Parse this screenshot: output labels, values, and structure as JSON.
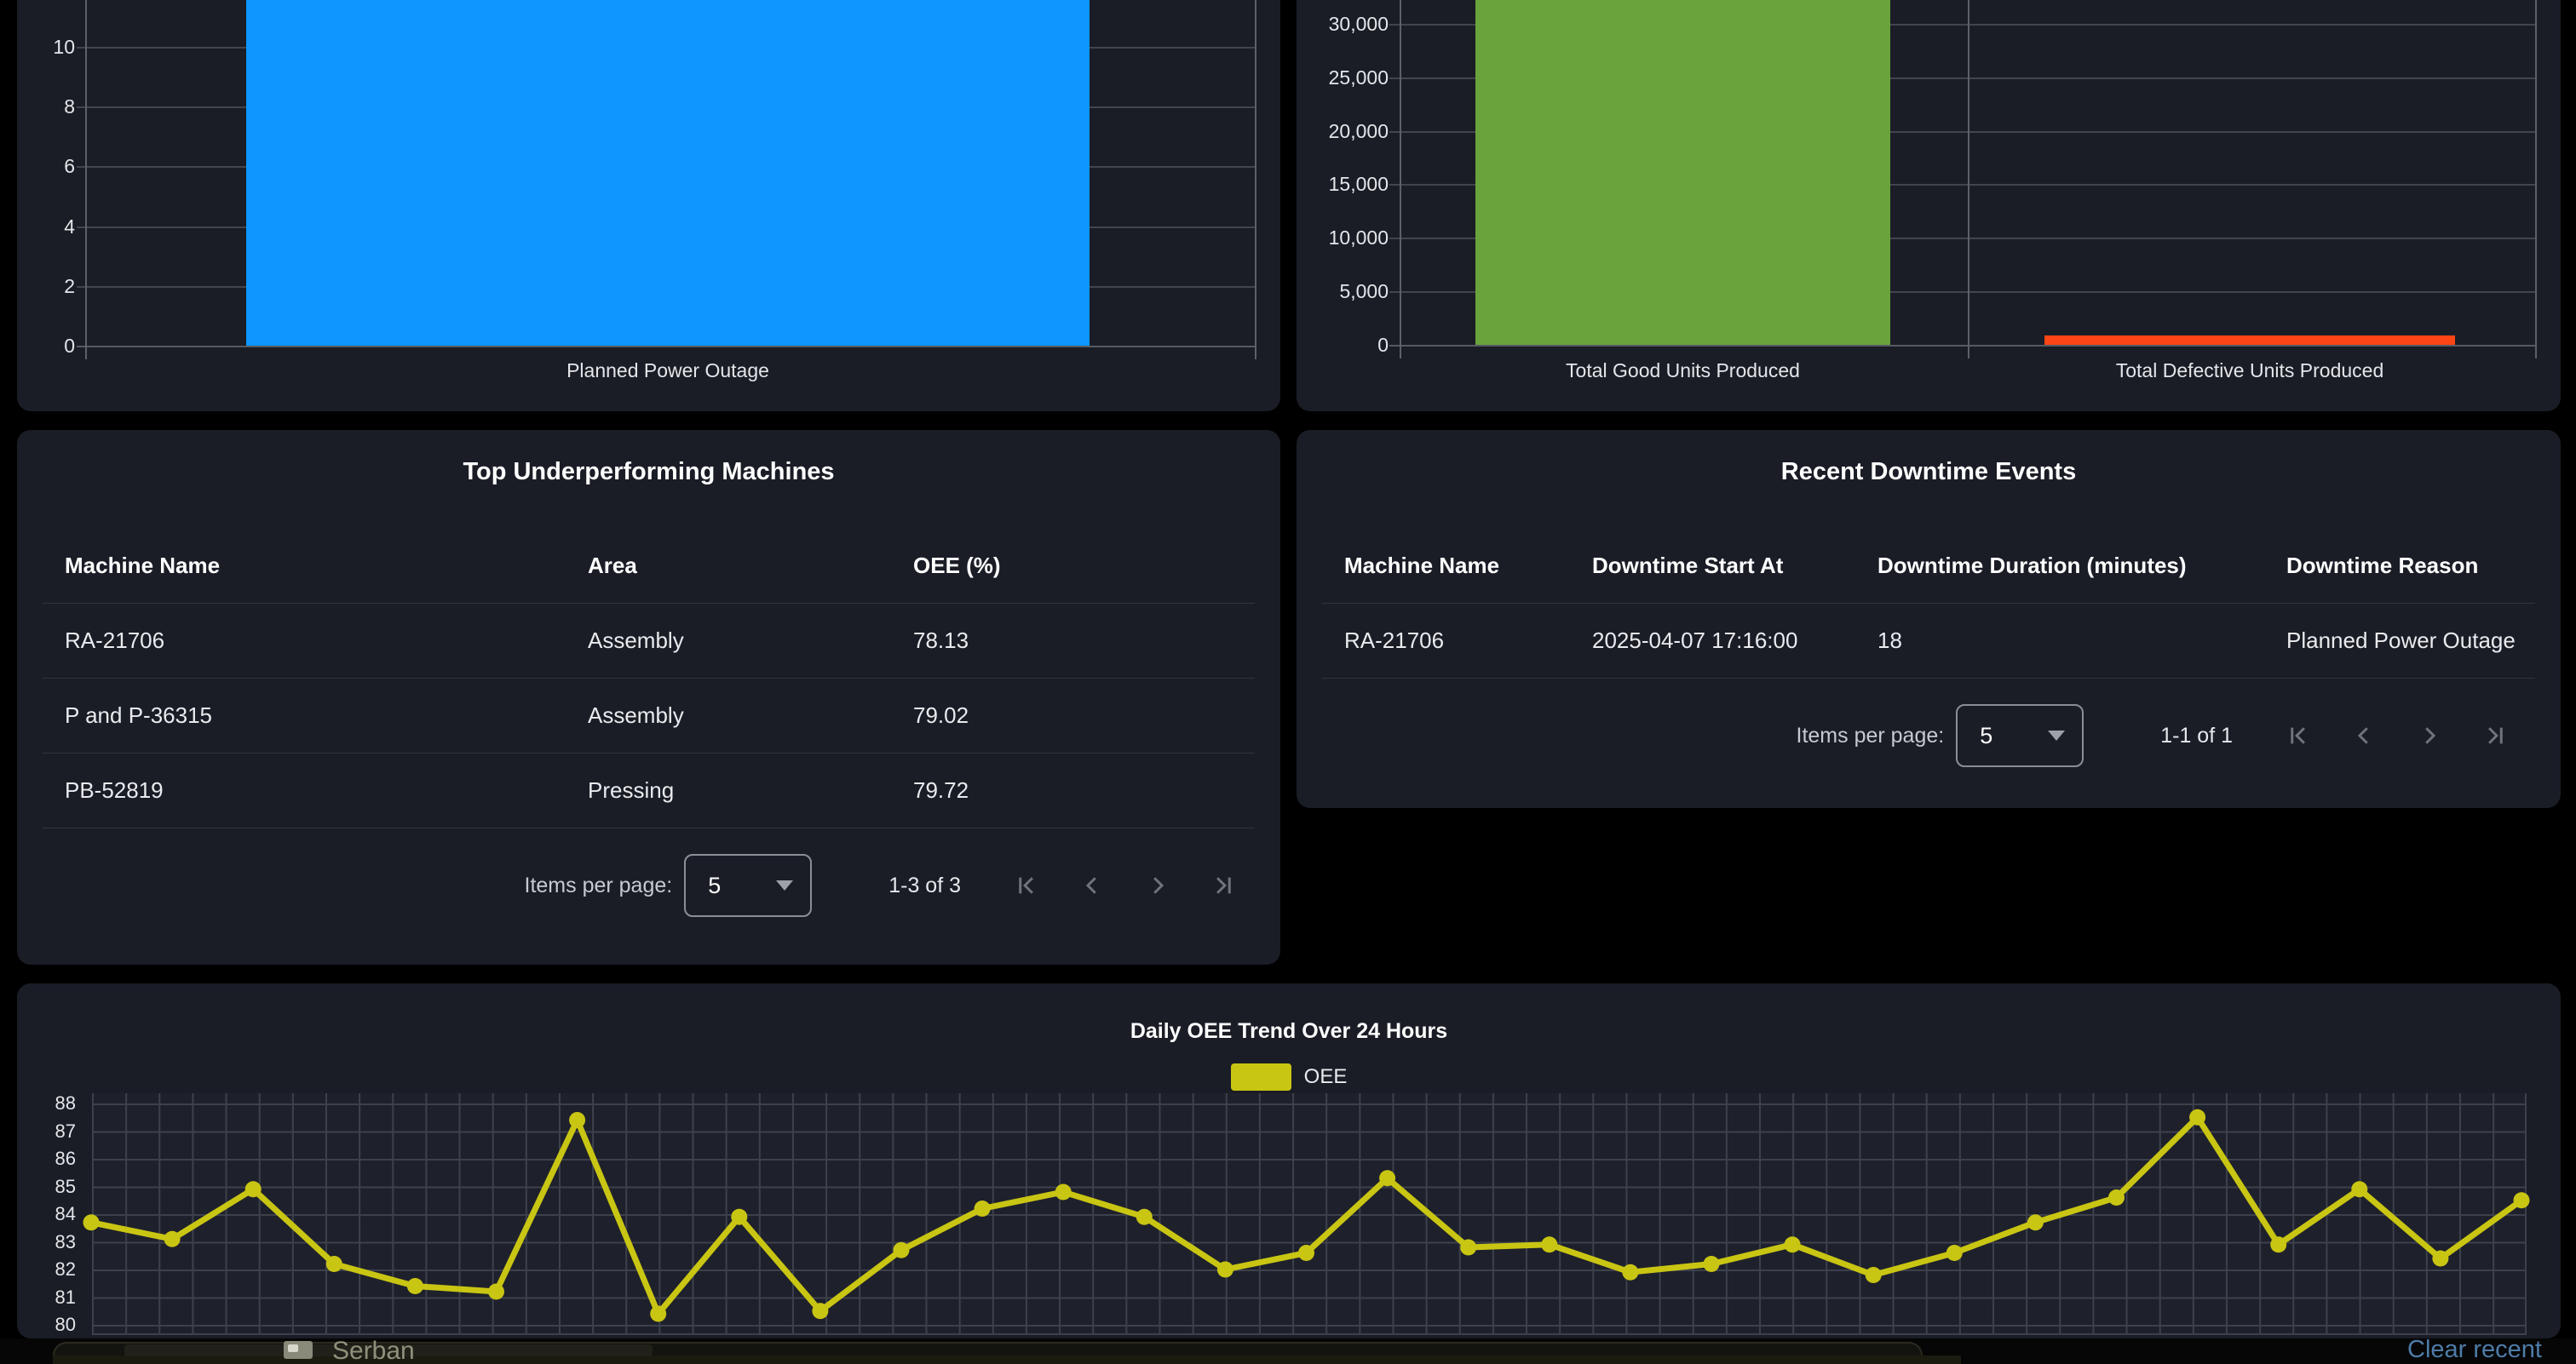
{
  "colors": {
    "accent_blue": "#0d97ff",
    "accent_green": "#6aa23c",
    "accent_red": "#fe4516",
    "accent_yellow": "#c9c513",
    "link_blue": "#4e7ca8"
  },
  "chart_data": [
    {
      "id": "downtime-by-reason",
      "type": "bar",
      "categories": [
        "Planned Power Outage"
      ],
      "values": [
        12
      ],
      "clipped_at_top": [
        true
      ],
      "ytick_values": [
        0,
        2,
        4,
        6,
        8,
        10
      ],
      "ytick_labels": [
        "0",
        "2",
        "4",
        "6",
        "8",
        "10"
      ],
      "bar_colors": [
        "#0d97ff"
      ],
      "ylim": [
        0,
        12
      ],
      "grid": "horizontal"
    },
    {
      "id": "units-produced",
      "type": "bar",
      "categories": [
        "Total Good Units Produced",
        "Total Defective Units Produced"
      ],
      "values": [
        33000,
        900
      ],
      "clipped_at_top": [
        true,
        false
      ],
      "ytick_values": [
        0,
        5000,
        10000,
        15000,
        20000,
        25000,
        30000
      ],
      "ytick_labels": [
        "0",
        "5,000",
        "10,000",
        "15,000",
        "20,000",
        "25,000",
        "30,000"
      ],
      "bar_colors": [
        "#6aa23c",
        "#fe4516"
      ],
      "ylim": [
        0,
        33000
      ],
      "grid": "horizontal"
    },
    {
      "id": "oee-trend",
      "type": "line",
      "title": "Daily OEE Trend Over 24 Hours",
      "legend_position": "top",
      "series": [
        {
          "name": "OEE",
          "color": "#c9c513",
          "values": [
            83.7,
            83.1,
            84.9,
            82.2,
            81.4,
            81.2,
            87.4,
            80.4,
            83.9,
            80.5,
            82.7,
            84.2,
            84.8,
            83.9,
            82.0,
            82.6,
            85.3,
            82.8,
            82.9,
            81.9,
            82.2,
            82.9,
            81.8,
            82.6,
            83.7,
            84.6,
            87.5,
            82.9,
            84.9,
            82.4,
            84.5
          ]
        }
      ],
      "ytick_values": [
        80,
        81,
        82,
        83,
        84,
        85,
        86,
        87,
        88
      ],
      "ytick_labels": [
        "80",
        "81",
        "82",
        "83",
        "84",
        "85",
        "86",
        "87",
        "88"
      ],
      "ylim": [
        80,
        88
      ],
      "grid": "fine"
    }
  ],
  "underperforming_table": {
    "title": "Top Underperforming Machines",
    "columns": [
      "Machine Name",
      "Area",
      "OEE (%)"
    ],
    "rows": [
      [
        "RA-21706",
        "Assembly",
        "78.13"
      ],
      [
        "P and P-36315",
        "Assembly",
        "79.02"
      ],
      [
        "PB-52819",
        "Pressing",
        "79.72"
      ]
    ],
    "pagination": {
      "label": "Items per page:",
      "page_size": "5",
      "range": "1-3 of 3"
    }
  },
  "downtime_table": {
    "title": "Recent Downtime Events",
    "columns": [
      "Machine Name",
      "Downtime Start At",
      "Downtime Duration (minutes)",
      "Downtime Reason"
    ],
    "rows": [
      [
        "RA-21706",
        "2025-04-07 17:16:00",
        "18",
        "Planned Power Outage"
      ]
    ],
    "pagination": {
      "label": "Items per page:",
      "page_size": "5",
      "range": "1-1 of 1"
    }
  },
  "taskbar": {
    "recent_item": "Serban",
    "clear_recent": "Clear recent"
  }
}
